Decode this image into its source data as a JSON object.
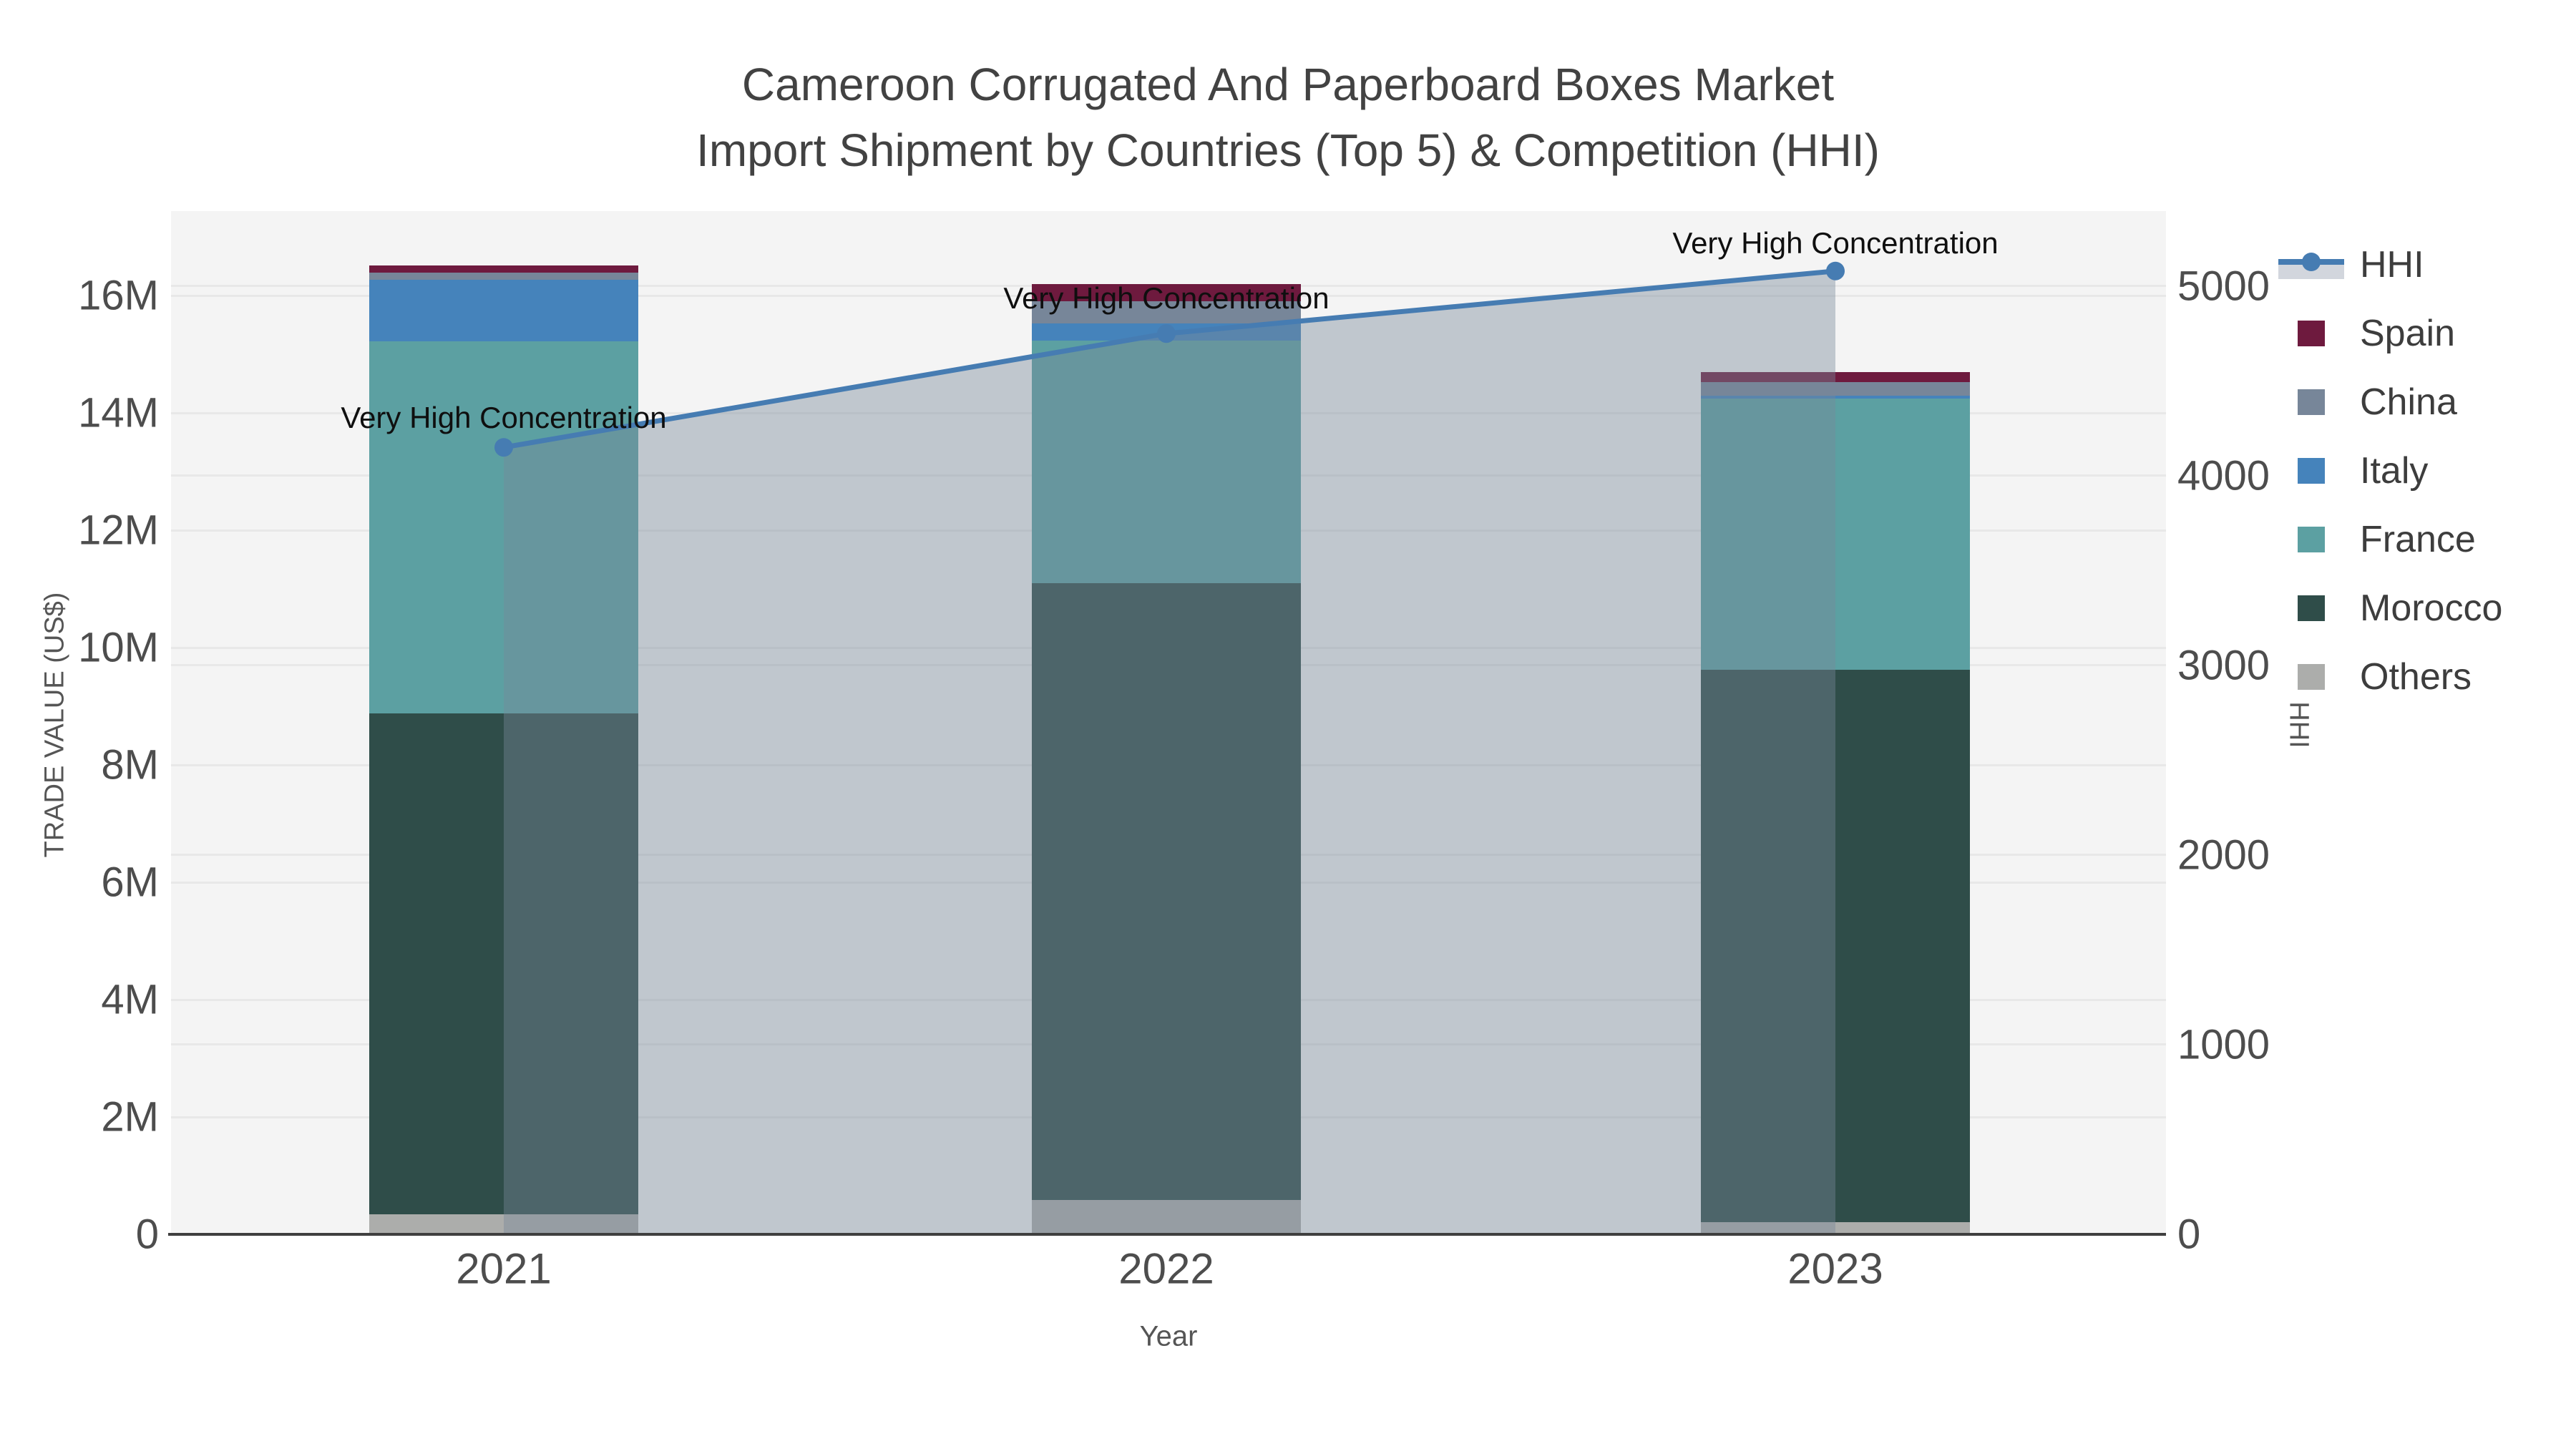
{
  "title": {
    "line1": "Cameroon Corrugated And Paperboard Boxes Market",
    "line2": "Import Shipment by Countries (Top 5) & Competition (HHI)"
  },
  "axes": {
    "x": {
      "title": "Year",
      "categories": [
        "2021",
        "2022",
        "2023"
      ]
    },
    "y_left": {
      "title": "TRADE VALUE (US$)",
      "tick_labels": [
        "0",
        "2M",
        "4M",
        "6M",
        "8M",
        "10M",
        "12M",
        "14M",
        "16M"
      ],
      "tick_values": [
        0,
        2000000,
        4000000,
        6000000,
        8000000,
        10000000,
        12000000,
        14000000,
        16000000
      ]
    },
    "y_right": {
      "title": "HHI",
      "tick_labels": [
        "0",
        "1000",
        "2000",
        "3000",
        "4000",
        "5000"
      ],
      "tick_values": [
        0,
        1000,
        2000,
        3000,
        4000,
        5000
      ]
    }
  },
  "legend": [
    {
      "label": "HHI",
      "type": "line",
      "color": "#467cb2"
    },
    {
      "label": "Spain",
      "type": "swatch",
      "color": "#6e1a3e"
    },
    {
      "label": "China",
      "type": "swatch",
      "color": "#778699"
    },
    {
      "label": "Italy",
      "type": "swatch",
      "color": "#4583bb"
    },
    {
      "label": "France",
      "type": "swatch",
      "color": "#5ca0a2"
    },
    {
      "label": "Morocco",
      "type": "swatch",
      "color": "#2f4d49"
    },
    {
      "label": "Others",
      "type": "swatch",
      "color": "#acadab"
    }
  ],
  "chart_data": {
    "type": "bar",
    "subtype": "stacked-bar-with-line",
    "title": "Cameroon Corrugated And Paperboard Boxes Market Import Shipment by Countries (Top 5) & Competition (HHI)",
    "xlabel": "Year",
    "ylabel_left": "TRADE VALUE (US$)",
    "ylabel_right": "HHI",
    "categories": [
      "2021",
      "2022",
      "2023"
    ],
    "stack_order_bottom_to_top": [
      "Others",
      "Morocco",
      "France",
      "Italy",
      "China",
      "Spain"
    ],
    "series": [
      {
        "name": "Spain",
        "color": "#6e1a3e",
        "values": [
          120000,
          290000,
          160000
        ]
      },
      {
        "name": "China",
        "color": "#778699",
        "values": [
          120000,
          380000,
          240000
        ]
      },
      {
        "name": "Italy",
        "color": "#4583bb",
        "values": [
          1050000,
          290000,
          40000
        ]
      },
      {
        "name": "France",
        "color": "#5ca0a2",
        "values": [
          6340000,
          4130000,
          4630000
        ]
      },
      {
        "name": "Morocco",
        "color": "#2f4d49",
        "values": [
          8540000,
          10510000,
          9410000
        ]
      },
      {
        "name": "Others",
        "color": "#acadab",
        "values": [
          340000,
          590000,
          210000
        ]
      }
    ],
    "bar_totals": [
      16510000,
      16190000,
      14690000
    ],
    "line_series": {
      "name": "HHI",
      "axis": "right",
      "color": "#467cb2",
      "area_fill": "rgba(119,136,153,0.42)",
      "values": [
        4150,
        4750,
        5080
      ],
      "annotations": [
        "Very High Concentration",
        "Very High Concentration",
        "Very High Concentration"
      ]
    },
    "ylim_left": [
      0,
      17440000
    ],
    "ylim_right": [
      0,
      5396
    ],
    "grid": true,
    "legend_position": "right",
    "plot_background": "#f4f4f4"
  }
}
